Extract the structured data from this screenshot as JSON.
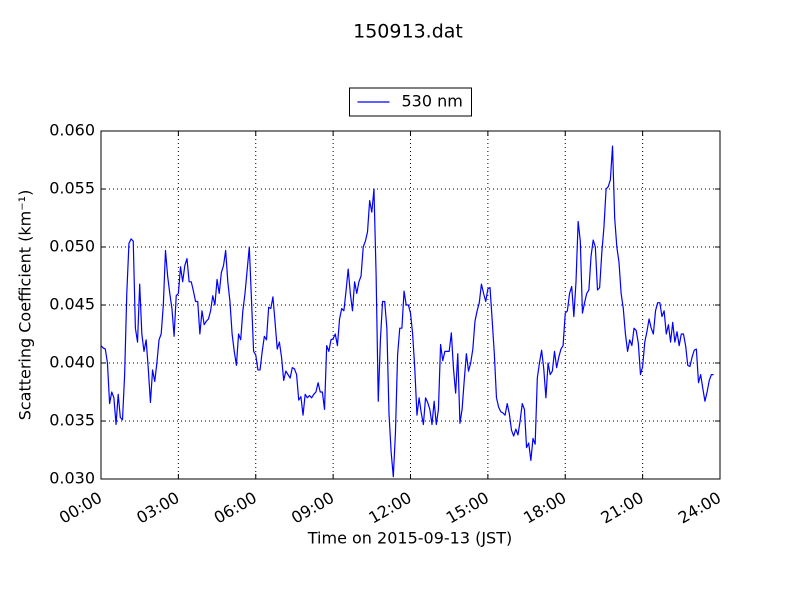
{
  "chart_data": {
    "type": "line",
    "title": "150913.dat",
    "xlabel": "Time on 2015-09-13 (JST)",
    "ylabel": "Scattering Coefficient (km⁻¹)",
    "xlim": [
      0,
      1440
    ],
    "xticks": [
      {
        "value": 0,
        "label": "00:00"
      },
      {
        "value": 180,
        "label": "03:00"
      },
      {
        "value": 360,
        "label": "06:00"
      },
      {
        "value": 540,
        "label": "09:00"
      },
      {
        "value": 720,
        "label": "12:00"
      },
      {
        "value": 900,
        "label": "15:00"
      },
      {
        "value": 1080,
        "label": "18:00"
      },
      {
        "value": 1260,
        "label": "21:00"
      },
      {
        "value": 1440,
        "label": "24:00"
      }
    ],
    "ylim": [
      0.03,
      0.06
    ],
    "yticks": [
      {
        "value": 0.03,
        "label": "0.030"
      },
      0.035,
      {
        "value": 0.04,
        "label": "0.040"
      },
      0.045,
      {
        "value": 0.05,
        "label": "0.050"
      },
      0.055,
      {
        "value": 0.06,
        "label": "0.060"
      }
    ],
    "grid": true,
    "legend": "upper center",
    "x": [
      0,
      5,
      10,
      15,
      20,
      25,
      30,
      35,
      40,
      45,
      50,
      55,
      60,
      65,
      70,
      75,
      80,
      85,
      90,
      95,
      100,
      105,
      110,
      115,
      120,
      125,
      130,
      135,
      140,
      145,
      150,
      155,
      160,
      165,
      170,
      175,
      180,
      185,
      190,
      195,
      200,
      205,
      210,
      215,
      220,
      225,
      230,
      235,
      240,
      245,
      250,
      255,
      260,
      265,
      270,
      275,
      280,
      285,
      290,
      295,
      300,
      305,
      310,
      315,
      320,
      325,
      330,
      335,
      340,
      345,
      350,
      355,
      360,
      365,
      370,
      375,
      380,
      385,
      390,
      395,
      400,
      405,
      410,
      415,
      420,
      425,
      430,
      435,
      440,
      445,
      450,
      455,
      460,
      465,
      470,
      475,
      480,
      485,
      490,
      495,
      500,
      505,
      510,
      515,
      520,
      525,
      530,
      535,
      540,
      545,
      550,
      555,
      560,
      565,
      570,
      575,
      580,
      585,
      590,
      595,
      600,
      605,
      610,
      615,
      620,
      625,
      630,
      635,
      640,
      645,
      650,
      655,
      660,
      665,
      670,
      675,
      680,
      685,
      690,
      695,
      700,
      705,
      710,
      715,
      720,
      725,
      730,
      735,
      740,
      745,
      750,
      755,
      760,
      765,
      770,
      775,
      780,
      785,
      790,
      795,
      800,
      805,
      810,
      815,
      820,
      825,
      830,
      835,
      840,
      845,
      850,
      855,
      860,
      865,
      870,
      875,
      880,
      885,
      890,
      895,
      900,
      905,
      910,
      915,
      920,
      925,
      930,
      935,
      940,
      945,
      950,
      955,
      960,
      965,
      970,
      975,
      980,
      985,
      990,
      995,
      1000,
      1005,
      1010,
      1015,
      1020,
      1025,
      1030,
      1035,
      1040,
      1045,
      1050,
      1055,
      1060,
      1065,
      1070,
      1075,
      1080,
      1085,
      1090,
      1095,
      1100,
      1105,
      1110,
      1115,
      1120,
      1125,
      1130,
      1135,
      1140,
      1145,
      1150,
      1155,
      1160,
      1165,
      1170,
      1175,
      1180,
      1185,
      1190,
      1195,
      1200,
      1205,
      1210,
      1215,
      1220,
      1225,
      1230,
      1235,
      1240,
      1245,
      1250,
      1255,
      1260,
      1265,
      1270,
      1275,
      1280,
      1285,
      1290,
      1295,
      1300,
      1305,
      1310,
      1315,
      1320,
      1325,
      1330,
      1335,
      1340,
      1345,
      1350,
      1355,
      1360,
      1365,
      1370,
      1375,
      1380,
      1385,
      1390,
      1395,
      1400,
      1405,
      1410,
      1415,
      1420,
      1425
    ],
    "series": [
      {
        "name": "530 nm",
        "color": "#0000ff",
        "values": [
          0.0415,
          0.0413,
          0.0412,
          0.04,
          0.0365,
          0.0375,
          0.037,
          0.0347,
          0.0373,
          0.0353,
          0.0351,
          0.039,
          0.046,
          0.0503,
          0.0507,
          0.0505,
          0.043,
          0.0418,
          0.0468,
          0.0425,
          0.041,
          0.042,
          0.0395,
          0.0366,
          0.0394,
          0.0384,
          0.04,
          0.042,
          0.0425,
          0.045,
          0.0497,
          0.0475,
          0.046,
          0.0447,
          0.0423,
          0.0458,
          0.046,
          0.0483,
          0.047,
          0.0484,
          0.049,
          0.047,
          0.047,
          0.0462,
          0.0453,
          0.0453,
          0.0425,
          0.0445,
          0.0433,
          0.0436,
          0.0438,
          0.0445,
          0.0458,
          0.045,
          0.0472,
          0.046,
          0.0478,
          0.0484,
          0.0497,
          0.047,
          0.0453,
          0.0425,
          0.041,
          0.0398,
          0.0425,
          0.042,
          0.0445,
          0.046,
          0.048,
          0.05,
          0.0455,
          0.041,
          0.0407,
          0.0394,
          0.0394,
          0.041,
          0.0423,
          0.042,
          0.0448,
          0.0447,
          0.0457,
          0.0435,
          0.0412,
          0.0418,
          0.0405,
          0.0385,
          0.0393,
          0.039,
          0.0387,
          0.0396,
          0.0395,
          0.039,
          0.0368,
          0.0371,
          0.0355,
          0.0373,
          0.037,
          0.0372,
          0.037,
          0.0373,
          0.0375,
          0.0383,
          0.0375,
          0.0375,
          0.036,
          0.0415,
          0.041,
          0.042,
          0.0421,
          0.0425,
          0.0415,
          0.0438,
          0.0447,
          0.0445,
          0.0462,
          0.0481,
          0.046,
          0.0445,
          0.047,
          0.046,
          0.047,
          0.0475,
          0.05,
          0.0505,
          0.0513,
          0.054,
          0.053,
          0.055,
          0.0476,
          0.0367,
          0.042,
          0.0453,
          0.0453,
          0.043,
          0.0356,
          0.0323,
          0.0302,
          0.034,
          0.0407,
          0.043,
          0.043,
          0.0462,
          0.045,
          0.045,
          0.0443,
          0.0425,
          0.0395,
          0.0355,
          0.037,
          0.0357,
          0.0347,
          0.037,
          0.0366,
          0.036,
          0.0347,
          0.0367,
          0.0347,
          0.036,
          0.0416,
          0.0402,
          0.041,
          0.041,
          0.041,
          0.0426,
          0.0395,
          0.0374,
          0.0408,
          0.0348,
          0.036,
          0.0385,
          0.0408,
          0.0393,
          0.04,
          0.0412,
          0.0436,
          0.0445,
          0.0452,
          0.0468,
          0.046,
          0.0453,
          0.0464,
          0.0465,
          0.0437,
          0.0408,
          0.037,
          0.0362,
          0.0358,
          0.0357,
          0.0355,
          0.0365,
          0.0356,
          0.0342,
          0.0337,
          0.0343,
          0.0338,
          0.035,
          0.0365,
          0.036,
          0.0327,
          0.0331,
          0.0316,
          0.0335,
          0.033,
          0.0387,
          0.04,
          0.0411,
          0.0395,
          0.037,
          0.04,
          0.039,
          0.0393,
          0.041,
          0.0396,
          0.0405,
          0.0412,
          0.0415,
          0.0443,
          0.0445,
          0.046,
          0.0466,
          0.044,
          0.047,
          0.0522,
          0.0505,
          0.0443,
          0.0452,
          0.046,
          0.0463,
          0.0492,
          0.0506,
          0.05,
          0.0463,
          0.0465,
          0.0495,
          0.0517,
          0.055,
          0.0552,
          0.0558,
          0.0587,
          0.0525,
          0.05,
          0.0487,
          0.046,
          0.0447,
          0.0425,
          0.041,
          0.042,
          0.0415,
          0.043,
          0.0428,
          0.0417,
          0.039,
          0.0397,
          0.0418,
          0.0427,
          0.0438,
          0.043,
          0.0425,
          0.0445,
          0.0452,
          0.0452,
          0.044,
          0.0445,
          0.0425,
          0.0433,
          0.0418,
          0.0435,
          0.0418,
          0.0427,
          0.0415,
          0.0425,
          0.0425,
          0.0415,
          0.0398,
          0.0397,
          0.0405,
          0.0411,
          0.0412,
          0.0383,
          0.039,
          0.0378,
          0.0367,
          0.0375,
          0.0385,
          0.039,
          0.039
        ]
      }
    ]
  }
}
